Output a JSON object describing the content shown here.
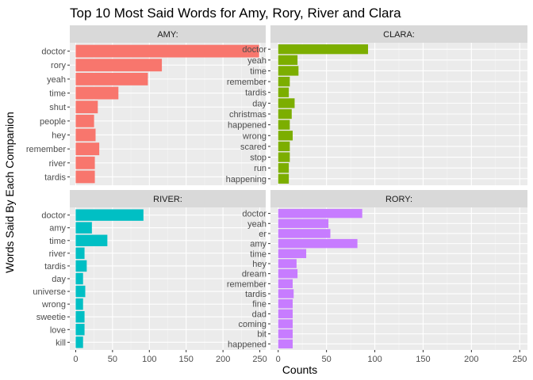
{
  "chart_data": {
    "type": "bar",
    "orientation": "horizontal",
    "title": "Top 10 Most Said Words for Amy, Rory, River and Clara",
    "xlabel": "Counts",
    "ylabel": "Words Said By Each Companion",
    "xlim": [
      -8,
      258
    ],
    "xticks": [
      0,
      50,
      100,
      150,
      200,
      250
    ],
    "grid": true,
    "legend": "none",
    "panels": [
      {
        "name": "AMY:",
        "color": "#F8766D",
        "categories": [
          "doctor",
          "rory",
          "yeah",
          "time",
          "shut",
          "people",
          "hey",
          "remember",
          "river",
          "tardis"
        ],
        "values": [
          249,
          117,
          98,
          58,
          30,
          25,
          27,
          32,
          26,
          26
        ]
      },
      {
        "name": "CLARA:",
        "color": "#7CAE00",
        "categories": [
          "doctor",
          "yeah",
          "time",
          "remember",
          "tardis",
          "day",
          "christmas",
          "happened",
          "wrong",
          "scared",
          "stop",
          "run",
          "happening"
        ],
        "values": [
          93,
          20,
          21,
          12,
          11,
          17,
          14,
          12,
          15,
          12,
          12,
          11,
          11
        ]
      },
      {
        "name": "RIVER:",
        "color": "#00BFC4",
        "categories": [
          "doctor",
          "amy",
          "time",
          "river",
          "tardis",
          "day",
          "universe",
          "wrong",
          "sweetie",
          "love",
          "kill"
        ],
        "values": [
          92,
          22,
          43,
          12,
          15,
          10,
          13,
          10,
          12,
          12,
          10
        ]
      },
      {
        "name": "RORY:",
        "color": "#C77CFF",
        "categories": [
          "doctor",
          "yeah",
          "er",
          "amy",
          "time",
          "hey",
          "dream",
          "remember",
          "tardis",
          "fine",
          "dad",
          "coming",
          "bit",
          "happened"
        ],
        "values": [
          87,
          52,
          54,
          82,
          29,
          19,
          20,
          15,
          16,
          15,
          15,
          15,
          15,
          15
        ]
      }
    ]
  }
}
